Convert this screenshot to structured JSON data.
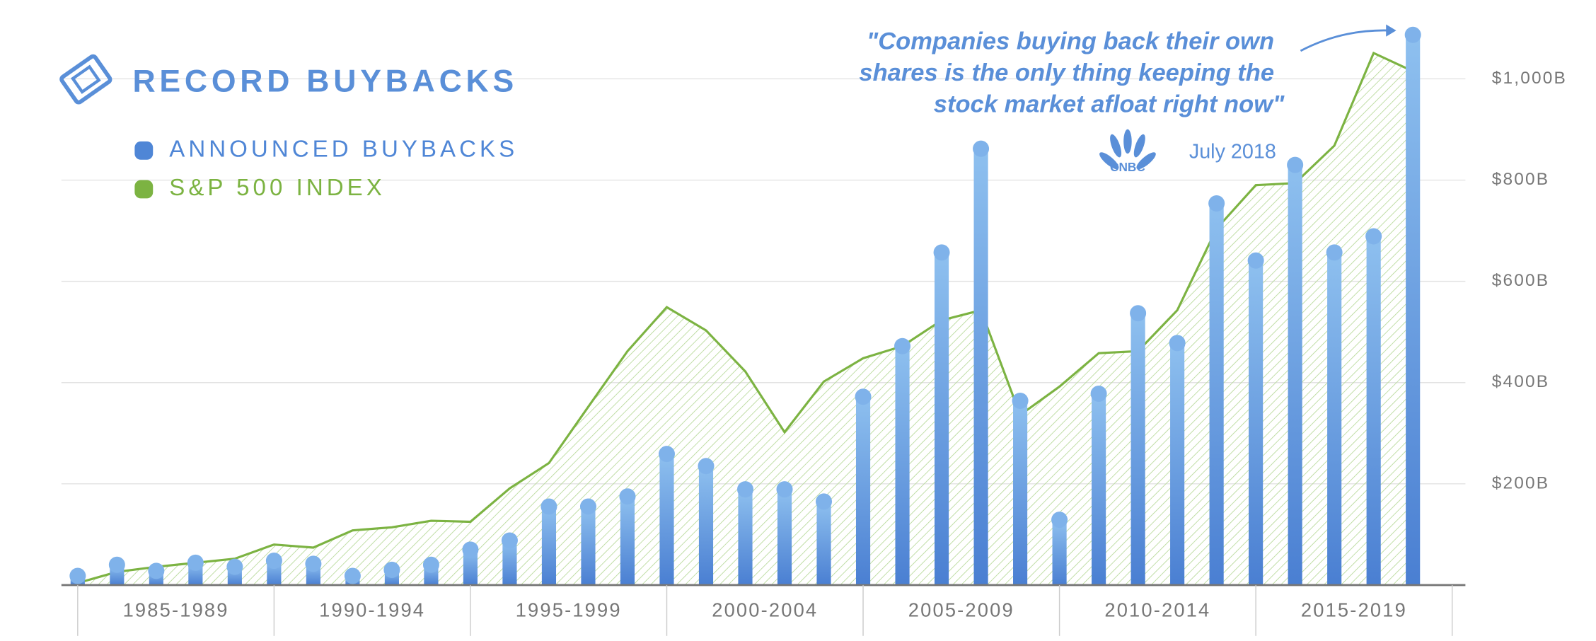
{
  "chart_data": {
    "type": "bar",
    "title": "RECORD BUYBACKS",
    "annotation": {
      "quote": [
        "\"Companies buying back their own",
        "shares is the only thing keeping the",
        "stock market afloat right now\""
      ],
      "source": "CNBC",
      "date": "July 2018"
    },
    "categories": [
      null,
      null,
      null,
      null,
      null,
      null,
      null,
      null,
      null,
      null,
      null,
      null,
      null,
      null,
      null,
      null,
      null,
      null,
      null,
      null,
      null,
      null,
      null,
      null,
      null,
      null,
      null,
      null,
      null,
      null,
      null,
      null,
      null,
      null,
      null
    ],
    "category_groups": [
      "1985-1989",
      "1990-1994",
      "1995-1999",
      "2000-2004",
      "2005-2009",
      "2010-2014",
      "2015-2019"
    ],
    "series": [
      {
        "name": "ANNOUNCED BUYBACKS",
        "type": "bar",
        "color": "#4f86d6",
        "values": [
          18,
          40,
          28,
          44,
          36,
          48,
          42,
          18,
          30,
          40,
          70,
          88,
          155,
          155,
          175,
          259,
          235,
          189,
          189,
          165,
          372,
          472,
          657,
          862,
          364,
          129,
          378,
          537,
          478,
          754,
          641,
          830,
          657,
          689,
          1087
        ]
      },
      {
        "name": "S&P 500 INDEX",
        "type": "area",
        "color": "#7cb342",
        "values": [
          4,
          26,
          36,
          44,
          52,
          80,
          74,
          108,
          114,
          127,
          125,
          191,
          241,
          352,
          462,
          549,
          503,
          422,
          302,
          402,
          448,
          472,
          523,
          543,
          336,
          392,
          458,
          462,
          543,
          704,
          790,
          794,
          868,
          1051,
          1015
        ]
      }
    ],
    "ylim": [
      0,
      1150
    ],
    "yticks": [
      {
        "value": 200,
        "label": "$200B"
      },
      {
        "value": 400,
        "label": "$400B"
      },
      {
        "value": 600,
        "label": "$600B"
      },
      {
        "value": 800,
        "label": "$800B"
      },
      {
        "value": 1000,
        "label": "$1,000B"
      }
    ],
    "grid": true
  }
}
